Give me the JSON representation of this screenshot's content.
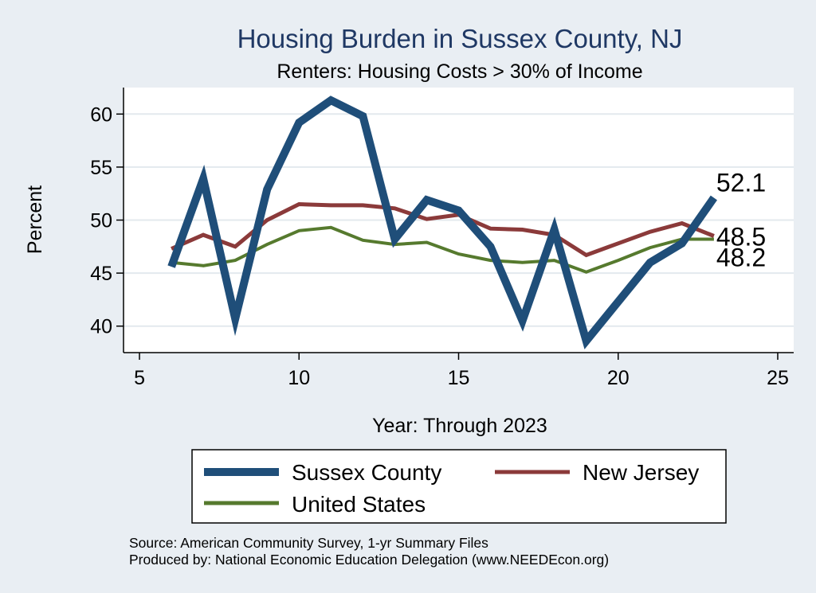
{
  "colors": {
    "background": "#e9eef3",
    "plot_bg": "#ffffff",
    "grid": "#e3e9ee",
    "title": "#1f3864"
  },
  "chart_data": {
    "type": "line",
    "title": "Housing Burden in Sussex County, NJ",
    "subtitle": "Renters: Housing Costs > 30% of Income",
    "xlabel": "Year: Through 2023",
    "ylabel": "Percent",
    "xlim": [
      4.5,
      25.5
    ],
    "ylim": [
      37.5,
      62.5
    ],
    "xticks": [
      5,
      10,
      15,
      20,
      25
    ],
    "yticks": [
      40,
      45,
      50,
      55,
      60
    ],
    "grid": true,
    "legend_position": "bottom",
    "x": [
      6,
      7,
      8,
      9,
      10,
      11,
      12,
      13,
      14,
      15,
      16,
      17,
      18,
      19,
      20,
      21,
      22,
      23
    ],
    "series": [
      {
        "name": "Sussex County",
        "color": "#1f4e79",
        "values": [
          45.6,
          53.9,
          40.7,
          52.9,
          59.2,
          61.3,
          59.8,
          48.2,
          51.9,
          50.9,
          47.5,
          40.5,
          49.1,
          38.6,
          42.3,
          46.0,
          47.8,
          52.1
        ],
        "end_label": "52.1"
      },
      {
        "name": "New Jersey",
        "color": "#8b3a3a",
        "values": [
          47.3,
          48.6,
          47.5,
          50.0,
          51.5,
          51.4,
          51.4,
          51.1,
          50.1,
          50.5,
          49.2,
          49.1,
          48.6,
          46.7,
          47.8,
          48.9,
          49.7,
          48.5
        ],
        "end_label": "48.5"
      },
      {
        "name": "United States",
        "color": "#567a2e",
        "values": [
          46.0,
          45.7,
          46.2,
          47.7,
          49.0,
          49.3,
          48.1,
          47.7,
          47.9,
          46.8,
          46.2,
          46.0,
          46.2,
          45.1,
          46.2,
          47.4,
          48.2,
          48.2
        ],
        "end_label": "48.2"
      }
    ]
  },
  "source": {
    "line1": "Source: American Community Survey, 1-yr Summary Files",
    "line2": "Produced by: National Economic Education Delegation (www.NEEDEcon.org)"
  }
}
